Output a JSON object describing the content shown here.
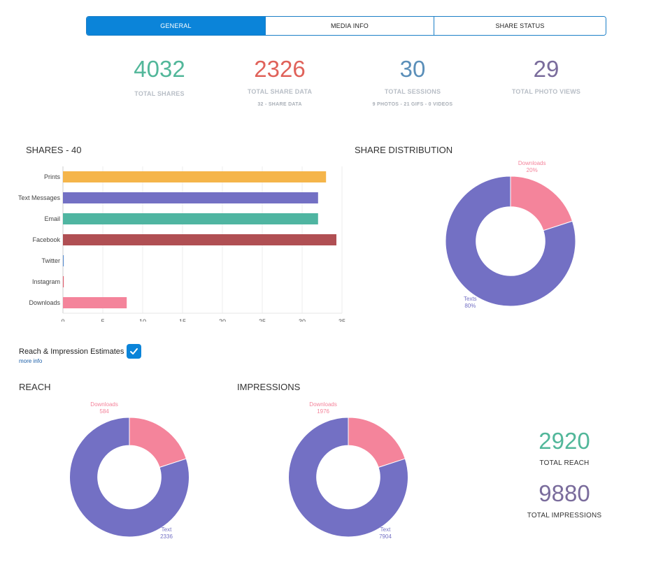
{
  "tabs": [
    {
      "label": "GENERAL",
      "active": true
    },
    {
      "label": "MEDIA INFO",
      "active": false
    },
    {
      "label": "SHARE STATUS",
      "active": false
    }
  ],
  "stats": [
    {
      "value": "4032",
      "label": "TOTAL SHARES",
      "sub": "",
      "color": "#52b79a"
    },
    {
      "value": "2326",
      "label": "TOTAL SHARE DATA",
      "sub": "32 - SHARE DATA",
      "color": "#e0625a"
    },
    {
      "value": "30",
      "label": "TOTAL SESSIONS",
      "sub": "9 PHOTOS - 21 GIFS - 0 VIDEOS",
      "color": "#5b8fb9"
    },
    {
      "value": "29",
      "label": "TOTAL PHOTO VIEWS",
      "sub": "",
      "color": "#7a6c9c"
    }
  ],
  "shares_title": "SHARES - 40",
  "distribution_title": "SHARE DISTRIBUTION",
  "reach_toggle": {
    "label": "Reach & Impression Estimates",
    "checked": true,
    "more_info": "more info"
  },
  "reach_title": "REACH",
  "impressions_title": "IMPRESSIONS",
  "totals": {
    "reach_value": "2920",
    "reach_label": "TOTAL REACH",
    "reach_color": "#52b79a",
    "impressions_value": "9880",
    "impressions_label": "TOTAL IMPRESSIONS",
    "impressions_color": "#7a6c9c"
  },
  "chart_data": [
    {
      "type": "bar",
      "orientation": "horizontal",
      "title": "SHARES - 40",
      "categories": [
        "Prints",
        "Text Messages",
        "Email",
        "Facebook",
        "Twitter",
        "Instagram",
        "Downloads"
      ],
      "values": [
        33,
        32,
        32,
        34.3,
        0.1,
        0.1,
        8
      ],
      "colors": [
        "#f5b54a",
        "#7370c4",
        "#4fb5a1",
        "#b04f53",
        "#5b8fd0",
        "#e06070",
        "#f4849b"
      ],
      "xlim": [
        0,
        35
      ],
      "xticks": [
        "0",
        "5",
        "10",
        "15",
        "20",
        "25",
        "30",
        "35"
      ],
      "grid": true
    },
    {
      "type": "pie",
      "title": "SHARE DISTRIBUTION",
      "donut": true,
      "slices": [
        {
          "label": "Downloads",
          "value": 20,
          "value_label": "20%",
          "color": "#f4849b"
        },
        {
          "label": "Texts",
          "value": 80,
          "value_label": "80%",
          "color": "#7370c4"
        }
      ]
    },
    {
      "type": "pie",
      "title": "REACH",
      "donut": true,
      "slices": [
        {
          "label": "Downloads",
          "value": 584,
          "value_label": "584",
          "color": "#f4849b"
        },
        {
          "label": "Text",
          "value": 2336,
          "value_label": "2336",
          "color": "#7370c4"
        }
      ]
    },
    {
      "type": "pie",
      "title": "IMPRESSIONS",
      "donut": true,
      "slices": [
        {
          "label": "Downloads",
          "value": 1976,
          "value_label": "1976",
          "color": "#f4849b"
        },
        {
          "label": "Text",
          "value": 7904,
          "value_label": "7904",
          "color": "#7370c4"
        }
      ]
    }
  ]
}
